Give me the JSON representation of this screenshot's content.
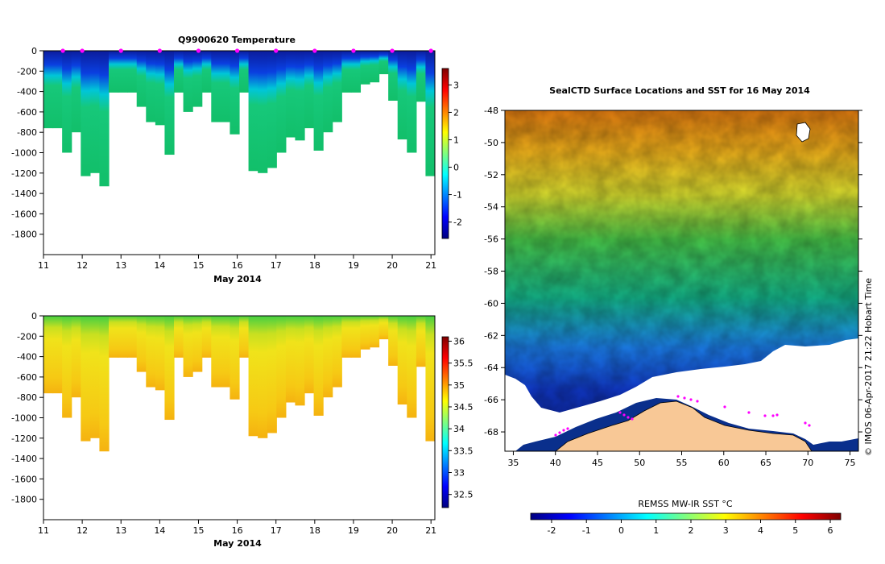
{
  "chart_data": [
    {
      "type": "heatmap",
      "name": "temperature-section",
      "title": "Q9900620  Temperature",
      "xlabel": "May 2014",
      "ylabel": "",
      "xlim": [
        11,
        21.1
      ],
      "ylim": [
        -2000,
        0
      ],
      "x_ticks": [
        "11",
        "12",
        "13",
        "14",
        "15",
        "16",
        "17",
        "18",
        "19",
        "20",
        "21"
      ],
      "y_ticks": [
        "0",
        "-200",
        "-400",
        "-600",
        "-800",
        "-1000",
        "-1200",
        "-1400",
        "-1600",
        "-1800"
      ],
      "colorbar": {
        "min": -2.6,
        "max": 3.6,
        "ticks": [
          "-2",
          "-1",
          "0",
          "1",
          "2",
          "3"
        ],
        "tick_values": [
          -2,
          -1,
          0,
          1,
          2,
          3
        ]
      },
      "profile_depths": [
        -760,
        -760,
        -1000,
        -800,
        -1230,
        -1200,
        -1330,
        -410,
        -410,
        -410,
        -550,
        -700,
        -730,
        -1020,
        -410,
        -600,
        -550,
        -410,
        -700,
        -700,
        -820,
        -410,
        -1180,
        -1200,
        -1150,
        -1000,
        -850,
        -880,
        -760,
        -980,
        -800,
        -700,
        -410,
        -410,
        -330,
        -310,
        -230,
        -490,
        -870,
        -1000,
        -500,
        -1230
      ],
      "markers_days": [
        11.5,
        12,
        13,
        14,
        15,
        16,
        17,
        18,
        19,
        20,
        21
      ]
    },
    {
      "type": "heatmap",
      "name": "salinity-section",
      "title": "",
      "xlabel": "May 2014",
      "ylabel": "",
      "xlim": [
        11,
        21.1
      ],
      "ylim": [
        -2000,
        0
      ],
      "x_ticks": [
        "11",
        "12",
        "13",
        "14",
        "15",
        "16",
        "17",
        "18",
        "19",
        "20",
        "21"
      ],
      "y_ticks": [
        "0",
        "-200",
        "-400",
        "-600",
        "-800",
        "-1000",
        "-1200",
        "-1400",
        "-1600",
        "-1800"
      ],
      "colorbar": {
        "min": 32.2,
        "max": 36.1,
        "ticks": [
          "32.5",
          "33",
          "33.5",
          "34",
          "34.5",
          "35",
          "35.5",
          "36"
        ],
        "tick_values": [
          32.5,
          33,
          33.5,
          34,
          34.5,
          35,
          35.5,
          36
        ]
      }
    },
    {
      "type": "heatmap",
      "name": "sst-map",
      "title": "SealCTD Surface Locations and SST for 16 May 2014",
      "xlim": [
        34,
        76
      ],
      "ylim": [
        -69.2,
        -48
      ],
      "x_ticks": [
        "35",
        "40",
        "45",
        "50",
        "55",
        "60",
        "65",
        "70",
        "75"
      ],
      "x_tick_values": [
        35,
        40,
        45,
        50,
        55,
        60,
        65,
        70,
        75
      ],
      "y_ticks": [
        "-48",
        "-50",
        "-52",
        "-54",
        "-56",
        "-58",
        "-60",
        "-62",
        "-64",
        "-66",
        "-68"
      ],
      "y_tick_values": [
        -48,
        -50,
        -52,
        -54,
        -56,
        -58,
        -60,
        -62,
        -64,
        -66,
        -68
      ],
      "colorbar": {
        "label": "REMSS MW-IR SST °C",
        "min": -2.6,
        "max": 6.3,
        "ticks": [
          "-2",
          "-1",
          "0",
          "1",
          "2",
          "3",
          "4",
          "5",
          "6"
        ],
        "tick_values": [
          -2,
          -1,
          0,
          1,
          2,
          3,
          4,
          5,
          6
        ]
      }
    }
  ],
  "credit": "© IMOS 06-Apr-2017 21:22 Hobart Time",
  "colors": {
    "land": "#f8c896",
    "marker": "#ff00ff",
    "background": "#ffffff"
  }
}
